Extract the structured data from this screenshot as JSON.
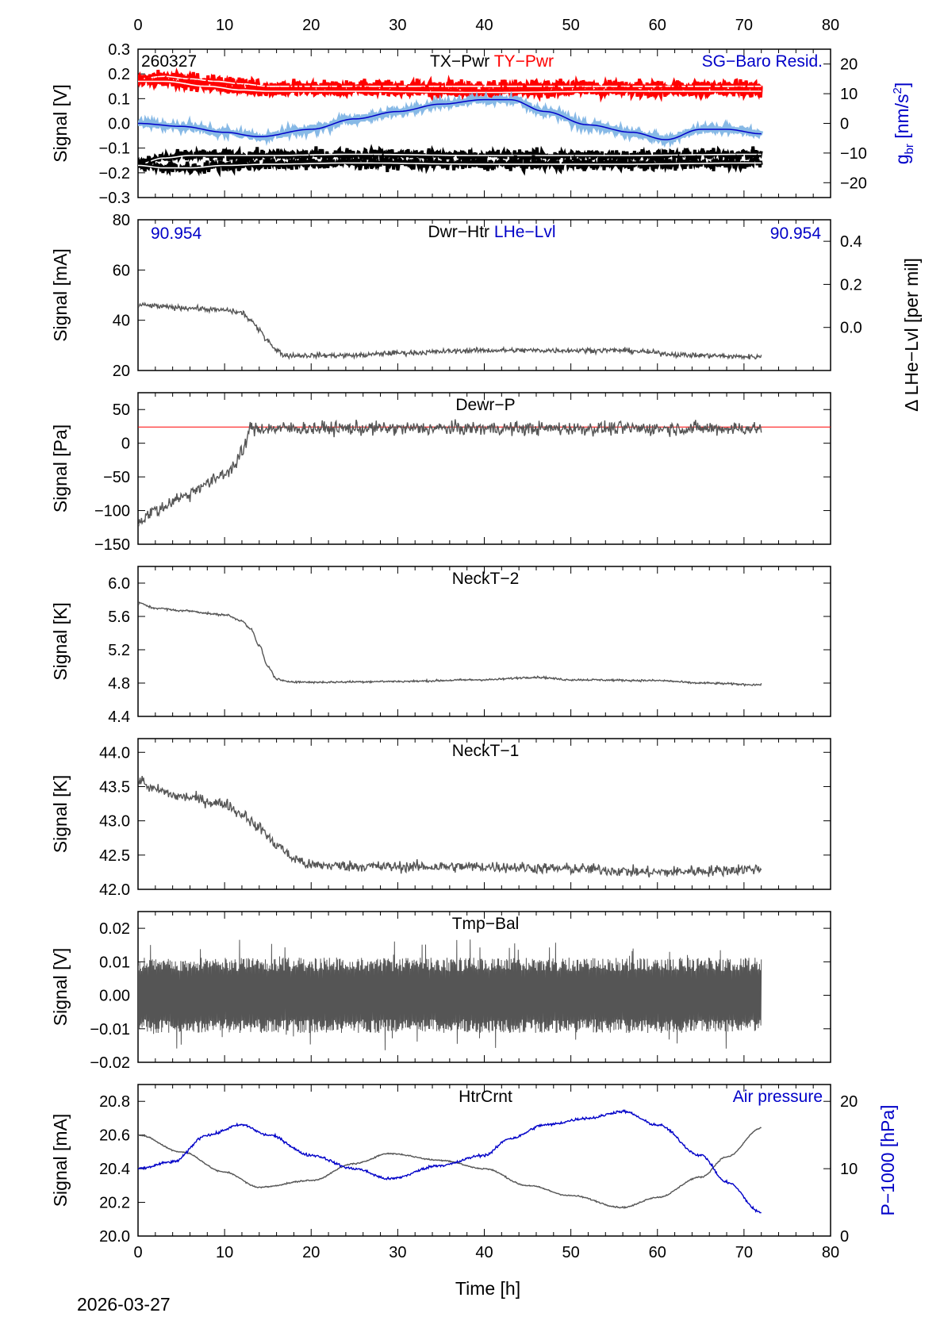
{
  "figure": {
    "date_footer": "2026-03-27",
    "x_axis_label": "Time [h]",
    "x_range": [
      0,
      80
    ],
    "x_ticks": [
      0,
      10,
      20,
      30,
      40,
      50,
      60,
      70,
      80
    ],
    "data_end_h": 72,
    "colors": {
      "black": "#000000",
      "red": "#ff0000",
      "blue": "#0000c8",
      "gray": "#555555",
      "lightblue": "#87b9e6",
      "white": "#ffffff"
    }
  },
  "chart_data": [
    {
      "id": "p1",
      "type": "line",
      "title_parts": [
        "TX−Pwr",
        "TY−Pwr"
      ],
      "date_label": "260327",
      "right_label": "SG−Baro Resid.",
      "ylabel": "Signal [V]",
      "ylim": [
        -0.3,
        0.3
      ],
      "yticks": [
        -0.3,
        -0.2,
        -0.1,
        0.0,
        0.1,
        0.2,
        0.3
      ],
      "ytick_labels": [
        "−0.3",
        "−0.2",
        "−0.1",
        "0.0",
        "0.1",
        "0.2",
        "0.3"
      ],
      "y2label": "g_br [nm/s²]",
      "y2label_main": "g",
      "y2label_sub": "br",
      "y2label_rest": " [nm/s",
      "y2label_sup": "2",
      "y2label_end": "]",
      "y2lim": [
        -25,
        25
      ],
      "y2ticks": [
        -20,
        -10,
        0,
        10,
        20
      ],
      "y2tick_labels": [
        "−20",
        "−10",
        "0",
        "10",
        "20"
      ],
      "series": [
        {
          "name": "TY−Pwr (upper)",
          "color": "red",
          "noise": 0.012,
          "x": [
            0,
            3,
            6,
            9,
            12,
            15,
            25,
            40,
            55,
            72
          ],
          "y": [
            0.18,
            0.19,
            0.18,
            0.17,
            0.16,
            0.15,
            0.15,
            0.15,
            0.15,
            0.15
          ]
        },
        {
          "name": "TY−Pwr (lower)",
          "color": "red",
          "noise": 0.01,
          "x": [
            0,
            3,
            8,
            12,
            15,
            25,
            40,
            55,
            72
          ],
          "y": [
            0.17,
            0.17,
            0.15,
            0.135,
            0.13,
            0.13,
            0.125,
            0.13,
            0.13
          ]
        },
        {
          "name": "TX−Pwr (upper)",
          "color": "black",
          "noise": 0.012,
          "x": [
            0,
            3,
            6,
            10,
            15,
            25,
            40,
            55,
            72
          ],
          "y": [
            -0.165,
            -0.14,
            -0.13,
            -0.13,
            -0.13,
            -0.125,
            -0.13,
            -0.13,
            -0.125
          ]
        },
        {
          "name": "TX−Pwr (lower)",
          "color": "black",
          "noise": 0.012,
          "x": [
            0,
            3,
            6,
            10,
            15,
            25,
            40,
            55,
            72
          ],
          "y": [
            -0.17,
            -0.18,
            -0.18,
            -0.17,
            -0.165,
            -0.16,
            -0.165,
            -0.165,
            -0.16
          ]
        },
        {
          "name": "SG−Baro Resid.",
          "color": "blue",
          "axis": "right",
          "noise": 0.6,
          "x": [
            0,
            5,
            10,
            14,
            20,
            25,
            30,
            35,
            40,
            43,
            47,
            52,
            57,
            61,
            65,
            68,
            72
          ],
          "y": [
            0,
            -1,
            -3,
            -4.5,
            -2,
            1.5,
            4,
            6.5,
            8,
            8,
            4,
            -0.5,
            -3,
            -5.5,
            -2,
            -2,
            -3.5
          ]
        }
      ]
    },
    {
      "id": "p2",
      "type": "line",
      "title_parts": [
        "Dwr−Htr",
        "LHe−Lvl"
      ],
      "left_value": "90.954",
      "right_value": "90.954",
      "ylabel": "Signal [mA]",
      "ylim": [
        20,
        80
      ],
      "yticks": [
        20,
        40,
        60,
        80
      ],
      "ytick_labels": [
        "20",
        "40",
        "60",
        "80"
      ],
      "y2label": "Δ LHe−Lvl [per mil]",
      "y2lim": [
        -0.2,
        0.5
      ],
      "y2ticks": [
        0.0,
        0.2,
        0.4
      ],
      "y2tick_labels": [
        "0.0",
        "0.2",
        "0.4"
      ],
      "series": [
        {
          "name": "Dwr−Htr",
          "color": "gray",
          "noise": 0.5,
          "x": [
            0,
            5,
            10,
            12,
            13,
            14,
            15,
            16,
            17,
            20,
            25,
            30,
            40,
            45,
            55,
            65,
            70,
            72
          ],
          "y": [
            46,
            45,
            44,
            43,
            40,
            36,
            32,
            28,
            26,
            26,
            26,
            27,
            28,
            28,
            28,
            26,
            25.5,
            25.5
          ]
        }
      ]
    },
    {
      "id": "p3",
      "type": "line",
      "title_parts": [
        "Dewr−P"
      ],
      "ylabel": "Signal [Pa]",
      "ylim": [
        -150,
        75
      ],
      "yticks": [
        -150,
        -100,
        -50,
        0,
        50
      ],
      "ytick_labels": [
        "−150",
        "−100",
        "−50",
        "0",
        "50"
      ],
      "hline": {
        "y": 24,
        "color": "red"
      },
      "series": [
        {
          "name": "Dewr−P",
          "color": "gray",
          "noise": 5,
          "x": [
            0,
            2,
            5,
            8,
            10,
            11,
            12,
            13,
            72
          ],
          "y": [
            -115,
            -100,
            -80,
            -60,
            -45,
            -35,
            -15,
            22,
            22
          ]
        }
      ]
    },
    {
      "id": "p4",
      "type": "line",
      "title_parts": [
        "NeckT−2"
      ],
      "ylabel": "Signal [K]",
      "ylim": [
        4.4,
        6.2
      ],
      "yticks": [
        4.4,
        4.8,
        5.2,
        5.6,
        6.0
      ],
      "ytick_labels": [
        "4.4",
        "4.8",
        "5.2",
        "5.6",
        "6.0"
      ],
      "series": [
        {
          "name": "NeckT−2",
          "color": "gray",
          "noise": 0.006,
          "x": [
            0,
            2,
            5,
            10,
            12,
            13,
            14,
            15,
            16,
            17,
            20,
            30,
            40,
            46,
            50,
            60,
            65,
            72
          ],
          "y": [
            5.76,
            5.7,
            5.67,
            5.62,
            5.55,
            5.45,
            5.25,
            5.0,
            4.85,
            4.82,
            4.81,
            4.82,
            4.84,
            4.87,
            4.84,
            4.83,
            4.8,
            4.78
          ]
        }
      ]
    },
    {
      "id": "p5",
      "type": "line",
      "title_parts": [
        "NeckT−1"
      ],
      "ylabel": "Signal [K]",
      "ylim": [
        42.0,
        44.2
      ],
      "yticks": [
        42.0,
        42.5,
        43.0,
        43.5,
        44.0
      ],
      "ytick_labels": [
        "42.0",
        "42.5",
        "43.0",
        "43.5",
        "44.0"
      ],
      "series": [
        {
          "name": "NeckT−1",
          "color": "gray",
          "noise": 0.04,
          "x": [
            0,
            2,
            5,
            10,
            12,
            14,
            16,
            18,
            20,
            30,
            40,
            50,
            60,
            65,
            72
          ],
          "y": [
            43.6,
            43.45,
            43.35,
            43.25,
            43.1,
            42.9,
            42.65,
            42.45,
            42.35,
            42.33,
            42.33,
            42.3,
            42.25,
            42.27,
            42.3
          ]
        }
      ]
    },
    {
      "id": "p6",
      "type": "line",
      "title_parts": [
        "Tmp−Bal"
      ],
      "ylabel": "Signal [V]",
      "ylim": [
        -0.02,
        0.025
      ],
      "yticks": [
        -0.02,
        -0.01,
        0.0,
        0.01,
        0.02
      ],
      "ytick_labels": [
        "−0.02",
        "−0.01",
        "0.00",
        "0.01",
        "0.02"
      ],
      "series": [
        {
          "name": "Tmp−Bal",
          "color": "gray",
          "noise_band": 0.009,
          "x": [
            0,
            72
          ],
          "y": [
            0,
            0
          ]
        }
      ]
    },
    {
      "id": "p7",
      "type": "line",
      "title_parts": [
        "HtrCrnt"
      ],
      "right_label": "Air pressure",
      "ylabel": "Signal [mA]",
      "ylim": [
        20.0,
        20.9
      ],
      "yticks": [
        20.0,
        20.2,
        20.4,
        20.6,
        20.8
      ],
      "ytick_labels": [
        "20.0",
        "20.2",
        "20.4",
        "20.6",
        "20.8"
      ],
      "y2label": "P−1000 [hPa]",
      "y2lim": [
        0,
        22.5
      ],
      "y2ticks": [
        0,
        10,
        20
      ],
      "y2tick_labels": [
        "0",
        "10",
        "20"
      ],
      "series": [
        {
          "name": "HtrCrnt",
          "color": "gray",
          "noise": 0.002,
          "x": [
            0,
            5,
            10,
            14,
            20,
            25,
            29,
            35,
            40,
            45,
            50,
            56,
            60,
            65,
            68,
            72
          ],
          "y": [
            20.6,
            20.5,
            20.38,
            20.29,
            20.33,
            20.43,
            20.49,
            20.45,
            20.4,
            20.3,
            20.24,
            20.17,
            20.23,
            20.35,
            20.47,
            20.64
          ]
        },
        {
          "name": "Air pressure",
          "color": "blue",
          "axis": "right",
          "noise": 0.1,
          "x": [
            0,
            4,
            8,
            12,
            15,
            20,
            25,
            29,
            35,
            40,
            43,
            47,
            52,
            56,
            60,
            65,
            68,
            72
          ],
          "y": [
            10,
            11,
            15,
            16.5,
            15,
            12,
            10,
            8.5,
            10.5,
            12,
            14.5,
            16.5,
            17.5,
            18.5,
            16.5,
            12,
            8,
            3.5
          ]
        }
      ]
    }
  ]
}
